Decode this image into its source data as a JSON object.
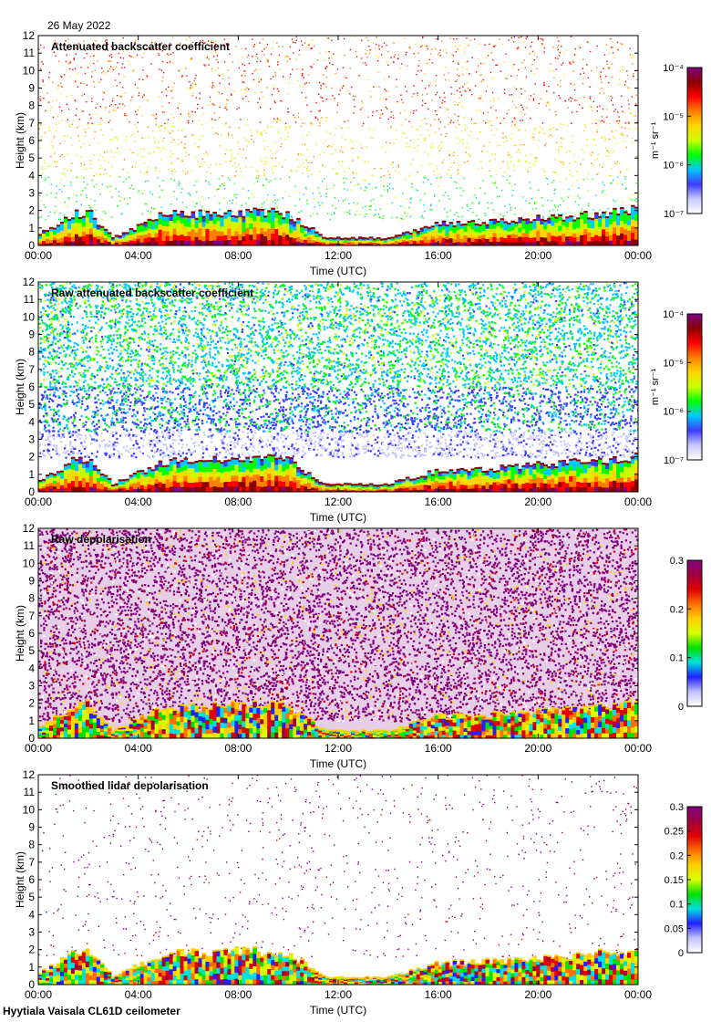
{
  "date": "26 May 2022",
  "footer": "Hyytiala Vaisala CL61D ceilometer",
  "colors": {
    "rainbow": [
      "#ffffff",
      "#c8c8ff",
      "#3c3cff",
      "#00c8ff",
      "#00ff00",
      "#c8ff00",
      "#ffd700",
      "#ff7f00",
      "#ff0000",
      "#8b0000",
      "#800080"
    ],
    "depol": [
      "#ffffff",
      "#c0c0ff",
      "#2020ff",
      "#00e0e0",
      "#00e000",
      "#d8ff00",
      "#ffd000",
      "#ff7000",
      "#e00000",
      "#a00040",
      "#800080"
    ]
  },
  "chart_data": [
    {
      "type": "heatmap",
      "title": "Attenuated backscatter coefficient",
      "xlabel": "Time (UTC)",
      "ylabel": "Height (km)",
      "x_ticks": [
        "00:00",
        "04:00",
        "08:00",
        "12:00",
        "16:00",
        "20:00",
        "00:00"
      ],
      "y_ticks": [
        "0",
        "1",
        "2",
        "3",
        "4",
        "5",
        "6",
        "7",
        "8",
        "9",
        "10",
        "11",
        "12"
      ],
      "xlim": [
        0,
        24
      ],
      "ylim": [
        0,
        12
      ],
      "colorbar": {
        "label": "m⁻¹ sr⁻¹",
        "scale": "log",
        "range": [
          1e-07,
          0.0001
        ],
        "ticks": [
          {
            "v": 1e-07,
            "label": "10⁻⁷"
          },
          {
            "v": 1e-06,
            "label": "10⁻⁶"
          },
          {
            "v": 1e-05,
            "label": "10⁻⁵"
          },
          {
            "v": 0.0001,
            "label": "10⁻⁴"
          }
        ]
      },
      "boundary_layer_top_km": [
        [
          0,
          0.6
        ],
        [
          1.5,
          1.8
        ],
        [
          2,
          1.9
        ],
        [
          3,
          0.4
        ],
        [
          5,
          1.7
        ],
        [
          8,
          1.9
        ],
        [
          10,
          1.8
        ],
        [
          11.5,
          0.4
        ],
        [
          14,
          0.4
        ],
        [
          16,
          1.2
        ],
        [
          18,
          1.3
        ],
        [
          20,
          1.5
        ],
        [
          22,
          1.7
        ],
        [
          24,
          2.0
        ]
      ],
      "aloft_noise": "sparse"
    },
    {
      "type": "heatmap",
      "title": "Raw attenuated backscatter coefficient",
      "xlabel": "Time (UTC)",
      "ylabel": "Height (km)",
      "x_ticks": [
        "00:00",
        "04:00",
        "08:00",
        "12:00",
        "16:00",
        "20:00",
        "00:00"
      ],
      "y_ticks": [
        "0",
        "1",
        "2",
        "3",
        "4",
        "5",
        "6",
        "7",
        "8",
        "9",
        "10",
        "11",
        "12"
      ],
      "xlim": [
        0,
        24
      ],
      "ylim": [
        0,
        12
      ],
      "colorbar": {
        "label": "m⁻¹ sr⁻¹",
        "scale": "log",
        "range": [
          1e-07,
          0.0001
        ],
        "ticks": [
          {
            "v": 1e-07,
            "label": "10⁻⁷"
          },
          {
            "v": 1e-06,
            "label": "10⁻⁶"
          },
          {
            "v": 1e-05,
            "label": "10⁻⁵"
          },
          {
            "v": 0.0001,
            "label": "10⁻⁴"
          }
        ]
      },
      "boundary_layer_top_km": [
        [
          0,
          0.6
        ],
        [
          1.5,
          1.8
        ],
        [
          2,
          1.9
        ],
        [
          3,
          0.4
        ],
        [
          5,
          1.7
        ],
        [
          8,
          1.9
        ],
        [
          10,
          1.8
        ],
        [
          11.5,
          0.4
        ],
        [
          14,
          0.4
        ],
        [
          16,
          1.2
        ],
        [
          18,
          1.3
        ],
        [
          20,
          1.5
        ],
        [
          22,
          1.7
        ],
        [
          24,
          2.0
        ]
      ],
      "aloft_noise": "dense"
    },
    {
      "type": "heatmap",
      "title": "Raw depolarisation",
      "xlabel": "Time (UTC)",
      "ylabel": "Height (km)",
      "x_ticks": [
        "00:00",
        "04:00",
        "08:00",
        "12:00",
        "16:00",
        "20:00",
        "00:00"
      ],
      "y_ticks": [
        "0",
        "1",
        "2",
        "3",
        "4",
        "5",
        "6",
        "7",
        "8",
        "9",
        "10",
        "11",
        "12"
      ],
      "xlim": [
        0,
        24
      ],
      "ylim": [
        0,
        12
      ],
      "colorbar": {
        "label": "",
        "scale": "linear",
        "range": [
          0,
          0.3
        ],
        "ticks": [
          {
            "v": 0,
            "label": "0"
          },
          {
            "v": 0.1,
            "label": "0.1"
          },
          {
            "v": 0.2,
            "label": "0.2"
          },
          {
            "v": 0.3,
            "label": "0.3"
          }
        ]
      },
      "boundary_layer_top_km": [
        [
          0,
          0.6
        ],
        [
          1.5,
          1.8
        ],
        [
          2,
          1.9
        ],
        [
          3,
          0.4
        ],
        [
          5,
          1.7
        ],
        [
          8,
          1.9
        ],
        [
          10,
          1.8
        ],
        [
          11.5,
          0.4
        ],
        [
          14,
          0.4
        ],
        [
          16,
          1.2
        ],
        [
          18,
          1.3
        ],
        [
          20,
          1.5
        ],
        [
          22,
          1.7
        ],
        [
          24,
          2.0
        ]
      ],
      "aloft_noise": "depol-dense"
    },
    {
      "type": "heatmap",
      "title": "Smoothed lidar depolarisation",
      "xlabel": "Time (UTC)",
      "ylabel": "Height (km)",
      "x_ticks": [
        "00:00",
        "04:00",
        "08:00",
        "12:00",
        "16:00",
        "20:00",
        "00:00"
      ],
      "y_ticks": [
        "0",
        "1",
        "2",
        "3",
        "4",
        "5",
        "6",
        "7",
        "8",
        "9",
        "10",
        "11",
        "12"
      ],
      "xlim": [
        0,
        24
      ],
      "ylim": [
        0,
        12
      ],
      "colorbar": {
        "label": "",
        "scale": "linear",
        "range": [
          0,
          0.3
        ],
        "ticks": [
          {
            "v": 0,
            "label": "0"
          },
          {
            "v": 0.05,
            "label": "0.05"
          },
          {
            "v": 0.1,
            "label": "0.1"
          },
          {
            "v": 0.15,
            "label": "0.15"
          },
          {
            "v": 0.2,
            "label": "0.2"
          },
          {
            "v": 0.25,
            "label": "0.25"
          },
          {
            "v": 0.3,
            "label": "0.3"
          }
        ]
      },
      "boundary_layer_top_km": [
        [
          0,
          0.6
        ],
        [
          1.5,
          1.8
        ],
        [
          2,
          1.9
        ],
        [
          3,
          0.4
        ],
        [
          5,
          1.7
        ],
        [
          8,
          1.9
        ],
        [
          10,
          1.8
        ],
        [
          11.5,
          0.4
        ],
        [
          14,
          0.4
        ],
        [
          16,
          1.2
        ],
        [
          18,
          1.3
        ],
        [
          20,
          1.5
        ],
        [
          22,
          1.7
        ],
        [
          24,
          2.0
        ]
      ],
      "aloft_noise": "depol-sparse"
    }
  ]
}
